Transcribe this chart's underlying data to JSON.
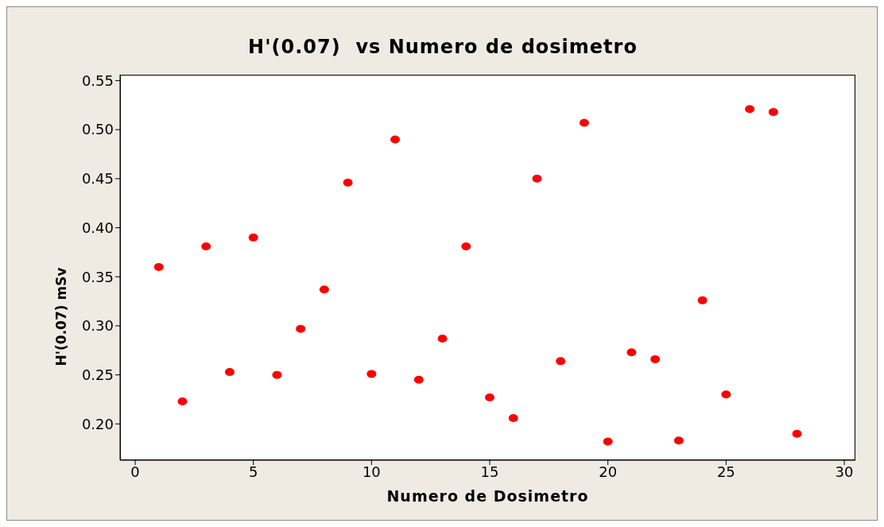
{
  "chart_data": {
    "type": "scatter",
    "title": "H'(0.07)  vs Numero de dosimetro",
    "xlabel": "Numero de Dosimetro",
    "ylabel": "H'(0.07) mSv",
    "x": [
      1,
      2,
      3,
      4,
      5,
      6,
      7,
      8,
      9,
      10,
      11,
      12,
      13,
      14,
      15,
      16,
      17,
      18,
      19,
      20,
      21,
      22,
      23,
      24,
      25,
      26,
      27,
      28
    ],
    "series": [
      {
        "color": "#ff0000",
        "values": [
          0.36,
          0.223,
          0.381,
          0.253,
          0.39,
          0.25,
          0.297,
          0.337,
          0.446,
          0.251,
          0.49,
          0.245,
          0.287,
          0.381,
          0.227,
          0.206,
          0.45,
          0.264,
          0.507,
          0.182,
          0.273,
          0.266,
          0.183,
          0.326,
          0.23,
          0.521,
          0.518,
          0.19
        ]
      }
    ],
    "xlim": [
      -0.64,
      30.47
    ],
    "xticks": [
      0,
      5,
      10,
      15,
      20,
      25,
      30
    ],
    "ylim": [
      0.163,
      0.556
    ],
    "yticks": [
      {
        "value": 0.2,
        "label": "0.20"
      },
      {
        "value": 0.25,
        "label": "0.25"
      },
      {
        "value": 0.3,
        "label": "0.30"
      },
      {
        "value": 0.35,
        "label": "0.35"
      },
      {
        "value": 0.4,
        "label": "0.40"
      },
      {
        "value": 0.45,
        "label": "0.45"
      },
      {
        "value": 0.5,
        "label": "0.50"
      },
      {
        "value": 0.55,
        "label": "0.55"
      }
    ],
    "grid": false,
    "legend": false,
    "marker": "circle"
  }
}
